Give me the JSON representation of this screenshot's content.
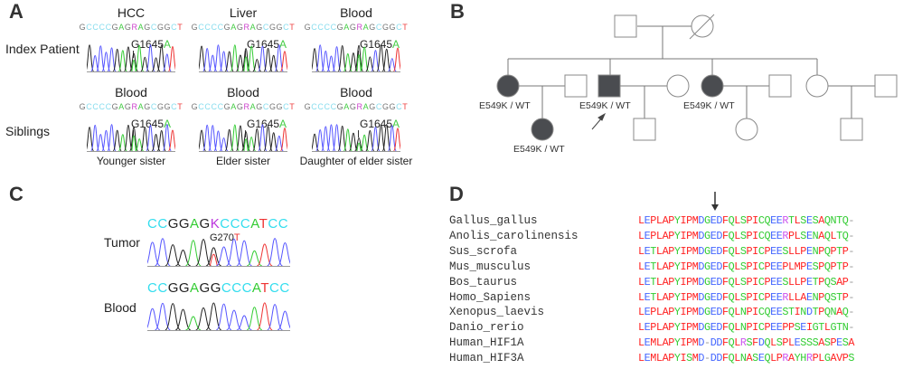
{
  "panels": {
    "a": "A",
    "b": "B",
    "c": "C",
    "d": "D"
  },
  "panel_a": {
    "row_labels": [
      "Index Patient",
      "Siblings"
    ],
    "sequence": "GCCCCGAGRAGCGGCT",
    "mutation": "G1645",
    "mutation_alt": "A",
    "row1_titles": [
      "HCC",
      "Liver",
      "Blood"
    ],
    "row2_titles": [
      "Blood",
      "Blood",
      "Blood"
    ],
    "captions": [
      "Younger sister",
      "Elder sister",
      "Daughter of elder sister"
    ]
  },
  "panel_b": {
    "genotype_label": "E549K / WT"
  },
  "panel_c": {
    "rows": [
      {
        "label": "Tumor",
        "sequence": "CCGGAGKCCCATCC",
        "mutation": "G270",
        "mutation_alt": "T"
      },
      {
        "label": "Blood",
        "sequence": "CCGGAGGCCCATCC"
      }
    ]
  },
  "panel_d": {
    "species": [
      {
        "name": "Gallus_gallus",
        "seq": "LEPLAPYIPMDGEDFQLSPICQEERTLSESAQNTQ-"
      },
      {
        "name": "Anolis_carolinensis",
        "seq": "LEPLAPYIPMDGEDFQLSPICQEERPLSENAQLTQ-"
      },
      {
        "name": "Sus_scrofa",
        "seq": "LETLAPYIPMDGEDFQLSPICPEESLLPENPQPTP-"
      },
      {
        "name": "Mus_musculus",
        "seq": "LETLAPYIPMDGEDFQLSPICPEEPLMPESPQPTP-"
      },
      {
        "name": "Bos_taurus",
        "seq": "LETLAPYIPMDGEDFQLSPICPEESLLPETPQSAP-"
      },
      {
        "name": "Homo_Sapiens",
        "seq": "LETLAPYIPMDGEDFQLSPICPEERLLAENPQSTP-"
      },
      {
        "name": "Xenopus_laevis",
        "seq": "LEPLAPYIPMDGEDFQLNPICQEESTINDTPQNAQ-"
      },
      {
        "name": "Danio_rerio",
        "seq": "LEPLAPYIPMDGEDFQLNPICPEEPPSEIGTLGTN-"
      },
      {
        "name": "Human_HIF1A",
        "seq": "LEMLAPYIPMD-DDFQLRSFDQLSPLESSSASPESA"
      },
      {
        "name": "Human_HIF3A",
        "seq": "LEMLAPYISMD-DDFQLNASEQLPRAYHRPLGAVPS"
      }
    ]
  }
}
